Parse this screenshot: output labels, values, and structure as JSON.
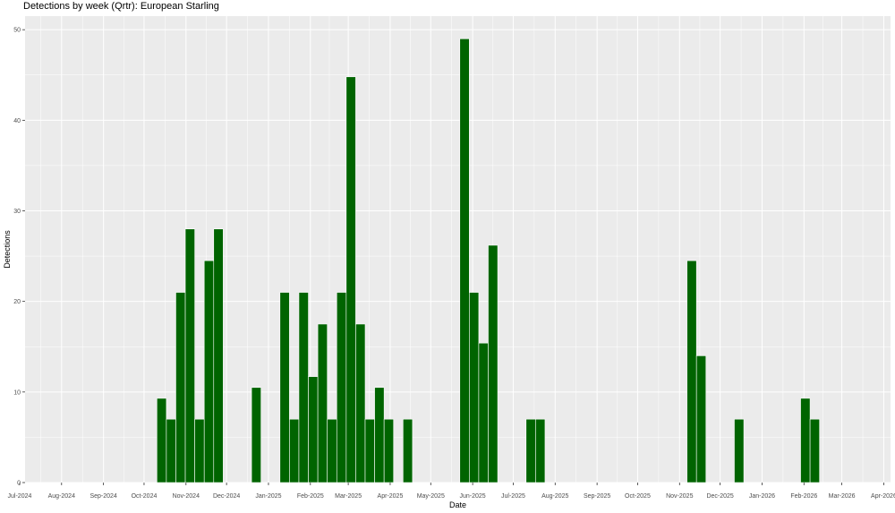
{
  "chart_data": {
    "type": "bar",
    "title": "Detections by week (Qrtr): European Starling",
    "xlabel": "Date",
    "ylabel": "Detections",
    "ylim": [
      0,
      51.5
    ],
    "xlim": [
      "2024-07-05",
      "2026-04-06"
    ],
    "yticks": [
      0,
      10,
      20,
      30,
      40,
      50
    ],
    "xticks": [
      {
        "date": "2024-07-01",
        "label": "Jul-2024"
      },
      {
        "date": "2024-08-01",
        "label": "Aug-2024"
      },
      {
        "date": "2024-09-01",
        "label": "Sep-2024"
      },
      {
        "date": "2024-10-01",
        "label": "Oct-2024"
      },
      {
        "date": "2024-11-01",
        "label": "Nov-2024"
      },
      {
        "date": "2024-12-01",
        "label": "Dec-2024"
      },
      {
        "date": "2025-01-01",
        "label": "Jan-2025"
      },
      {
        "date": "2025-02-01",
        "label": "Feb-2025"
      },
      {
        "date": "2025-03-01",
        "label": "Mar-2025"
      },
      {
        "date": "2025-04-01",
        "label": "Apr-2025"
      },
      {
        "date": "2025-05-01",
        "label": "May-2025"
      },
      {
        "date": "2025-06-01",
        "label": "Jun-2025"
      },
      {
        "date": "2025-07-01",
        "label": "Jul-2025"
      },
      {
        "date": "2025-08-01",
        "label": "Aug-2025"
      },
      {
        "date": "2025-09-01",
        "label": "Sep-2025"
      },
      {
        "date": "2025-10-01",
        "label": "Oct-2025"
      },
      {
        "date": "2025-11-01",
        "label": "Nov-2025"
      },
      {
        "date": "2025-12-01",
        "label": "Dec-2025"
      },
      {
        "date": "2026-01-01",
        "label": "Jan-2026"
      },
      {
        "date": "2026-02-01",
        "label": "Feb-2026"
      },
      {
        "date": "2026-03-01",
        "label": "Mar-2026"
      },
      {
        "date": "2026-04-01",
        "label": "Apr-2026"
      }
    ],
    "bar_color": "#006400",
    "panel_color": "#ebebeb",
    "grid": true,
    "bars": [
      {
        "week": "2024-10-14",
        "value": 9.3
      },
      {
        "week": "2024-10-21",
        "value": 7
      },
      {
        "week": "2024-10-28",
        "value": 21
      },
      {
        "week": "2024-11-04",
        "value": 28
      },
      {
        "week": "2024-11-11",
        "value": 7
      },
      {
        "week": "2024-11-18",
        "value": 24.5
      },
      {
        "week": "2024-11-25",
        "value": 28
      },
      {
        "week": "2024-12-23",
        "value": 10.5
      },
      {
        "week": "2025-01-13",
        "value": 21
      },
      {
        "week": "2025-01-20",
        "value": 7
      },
      {
        "week": "2025-01-27",
        "value": 21
      },
      {
        "week": "2025-02-03",
        "value": 11.7
      },
      {
        "week": "2025-02-10",
        "value": 17.5
      },
      {
        "week": "2025-02-17",
        "value": 7
      },
      {
        "week": "2025-02-24",
        "value": 21
      },
      {
        "week": "2025-03-03",
        "value": 44.8
      },
      {
        "week": "2025-03-10",
        "value": 17.5
      },
      {
        "week": "2025-03-17",
        "value": 7
      },
      {
        "week": "2025-03-24",
        "value": 10.5
      },
      {
        "week": "2025-03-31",
        "value": 7
      },
      {
        "week": "2025-04-14",
        "value": 7
      },
      {
        "week": "2025-05-26",
        "value": 49
      },
      {
        "week": "2025-06-02",
        "value": 21
      },
      {
        "week": "2025-06-09",
        "value": 15.4
      },
      {
        "week": "2025-06-16",
        "value": 26.2
      },
      {
        "week": "2025-07-14",
        "value": 7
      },
      {
        "week": "2025-07-21",
        "value": 7
      },
      {
        "week": "2025-11-10",
        "value": 24.5
      },
      {
        "week": "2025-11-17",
        "value": 14
      },
      {
        "week": "2025-12-15",
        "value": 7
      },
      {
        "week": "2026-02-02",
        "value": 9.3
      },
      {
        "week": "2026-02-09",
        "value": 7
      }
    ]
  }
}
